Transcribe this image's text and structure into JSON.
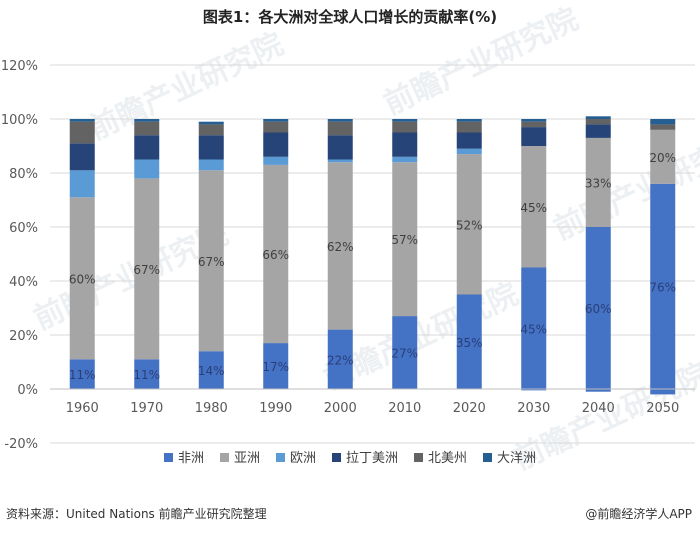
{
  "title": "图表1：各大洲对全球人口增长的贡献率(%)",
  "source_label": "资料来源：United Nations 前瞻产业研究院整理",
  "brand_label": "@前瞻经济学人APP",
  "watermark_text": "前瞻产业研究院",
  "colors": {
    "非洲": "#4472c4",
    "亚洲": "#a5a5a5",
    "欧洲": "#5b9bd5",
    "拉丁美洲": "#264478",
    "北美州": "#636363",
    "大洋洲": "#255e91",
    "gridline": "#d9d9d9",
    "axis": "#bfbfbf"
  },
  "chart_data": {
    "type": "bar",
    "stacked": true,
    "categories": [
      "1960",
      "1970",
      "1980",
      "1990",
      "2000",
      "2010",
      "2020",
      "2030",
      "2040",
      "2050"
    ],
    "ylim": [
      -20,
      120
    ],
    "yticks": [
      "-20%",
      "0%",
      "20%",
      "40%",
      "60%",
      "80%",
      "100%",
      "120%"
    ],
    "ytick_values": [
      -20,
      0,
      20,
      40,
      60,
      80,
      100,
      120
    ],
    "grid": true,
    "legend_position": "bottom",
    "series": [
      {
        "name": "非洲",
        "values": [
          11,
          11,
          14,
          17,
          22,
          27,
          35,
          45,
          60,
          76
        ],
        "negative_values": [
          0,
          0,
          0,
          0,
          0,
          0,
          0,
          -0.5,
          -1,
          -2
        ],
        "labels": [
          "11%",
          "11%",
          "14%",
          "17%",
          "22%",
          "27%",
          "35%",
          "45%",
          "60%",
          "76%"
        ]
      },
      {
        "name": "亚洲",
        "values": [
          60,
          67,
          67,
          66,
          62,
          57,
          52,
          45,
          33,
          20
        ],
        "labels": [
          "60%",
          "67%",
          "67%",
          "66%",
          "62%",
          "57%",
          "52%",
          "45%",
          "33%",
          "20%"
        ]
      },
      {
        "name": "欧洲",
        "values": [
          10,
          7,
          4,
          3,
          1,
          2,
          2,
          0,
          0,
          0
        ],
        "labels": []
      },
      {
        "name": "拉丁美洲",
        "values": [
          10,
          9,
          9,
          9,
          9,
          9,
          6,
          7,
          5,
          0
        ],
        "labels": []
      },
      {
        "name": "北美州",
        "values": [
          8,
          5,
          4,
          4,
          5,
          4,
          4,
          2,
          2,
          2
        ],
        "labels": []
      },
      {
        "name": "大洋洲",
        "values": [
          1,
          1,
          1,
          1,
          1,
          1,
          1,
          1,
          1,
          2
        ],
        "labels": []
      }
    ]
  }
}
